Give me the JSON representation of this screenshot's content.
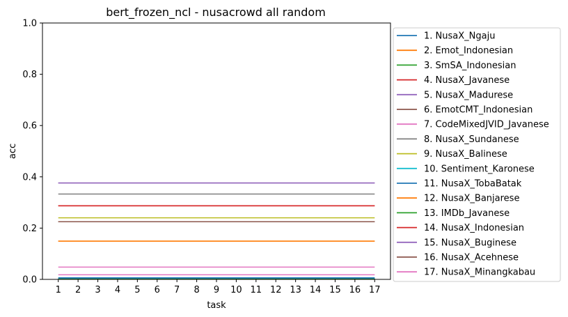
{
  "chart_data": {
    "type": "line",
    "title": "bert_frozen_ncl - nusacrowd all random",
    "xlabel": "task",
    "ylabel": "acc",
    "x": [
      1,
      2,
      3,
      4,
      5,
      6,
      7,
      8,
      9,
      10,
      11,
      12,
      13,
      14,
      15,
      16,
      17
    ],
    "xlim": [
      0.2,
      17.8
    ],
    "ylim": [
      0,
      1.0
    ],
    "yticks": [
      0.0,
      0.2,
      0.4,
      0.6,
      0.8,
      1.0
    ],
    "ytick_labels": [
      "0.0",
      "0.2",
      "0.4",
      "0.6",
      "0.8",
      "1.0"
    ],
    "xtick_labels": [
      "1",
      "2",
      "3",
      "4",
      "5",
      "6",
      "7",
      "8",
      "9",
      "10",
      "11",
      "12",
      "13",
      "14",
      "15",
      "16",
      "17"
    ],
    "grid": false,
    "legend_position": "outside right",
    "series": [
      {
        "name": "1. NusaX_Ngaju",
        "color": "#1f77b4",
        "value": 0.006
      },
      {
        "name": "2. Emot_Indonesian",
        "color": "#ff7f0e",
        "value": 0.149
      },
      {
        "name": "3. SmSA_Indonesian",
        "color": "#2ca02c",
        "value": 0.003
      },
      {
        "name": "4. NusaX_Javanese",
        "color": "#d62728",
        "value": 0.287
      },
      {
        "name": "5. NusaX_Madurese",
        "color": "#9467bd",
        "value": 0.376
      },
      {
        "name": "6. EmotCMT_Indonesian",
        "color": "#8c564b",
        "value": 0.225
      },
      {
        "name": "7. CodeMixedJVID_Javanese",
        "color": "#e377c2",
        "value": 0.048
      },
      {
        "name": "8. NusaX_Sundanese",
        "color": "#7f7f7f",
        "value": 0.333
      },
      {
        "name": "9. NusaX_Balinese",
        "color": "#bcbd22",
        "value": 0.24
      },
      {
        "name": "10. Sentiment_Karonese",
        "color": "#17becf",
        "value": 0.002
      },
      {
        "name": "11. NusaX_TobaBatak",
        "color": "#1f77b4",
        "value": 0.004
      },
      {
        "name": "12. NusaX_Banjarese",
        "color": "#ff7f0e",
        "value": 0.149
      },
      {
        "name": "13. IMDb_Javanese",
        "color": "#2ca02c",
        "value": 0.001
      },
      {
        "name": "14. NusaX_Indonesian",
        "color": "#d62728",
        "value": 0.287
      },
      {
        "name": "15. NusaX_Buginese",
        "color": "#9467bd",
        "value": 0.376
      },
      {
        "name": "16. NusaX_Acehnese",
        "color": "#8c564b",
        "value": 0.225
      },
      {
        "name": "17. NusaX_Minangkabau",
        "color": "#e377c2",
        "value": 0.018
      }
    ]
  }
}
